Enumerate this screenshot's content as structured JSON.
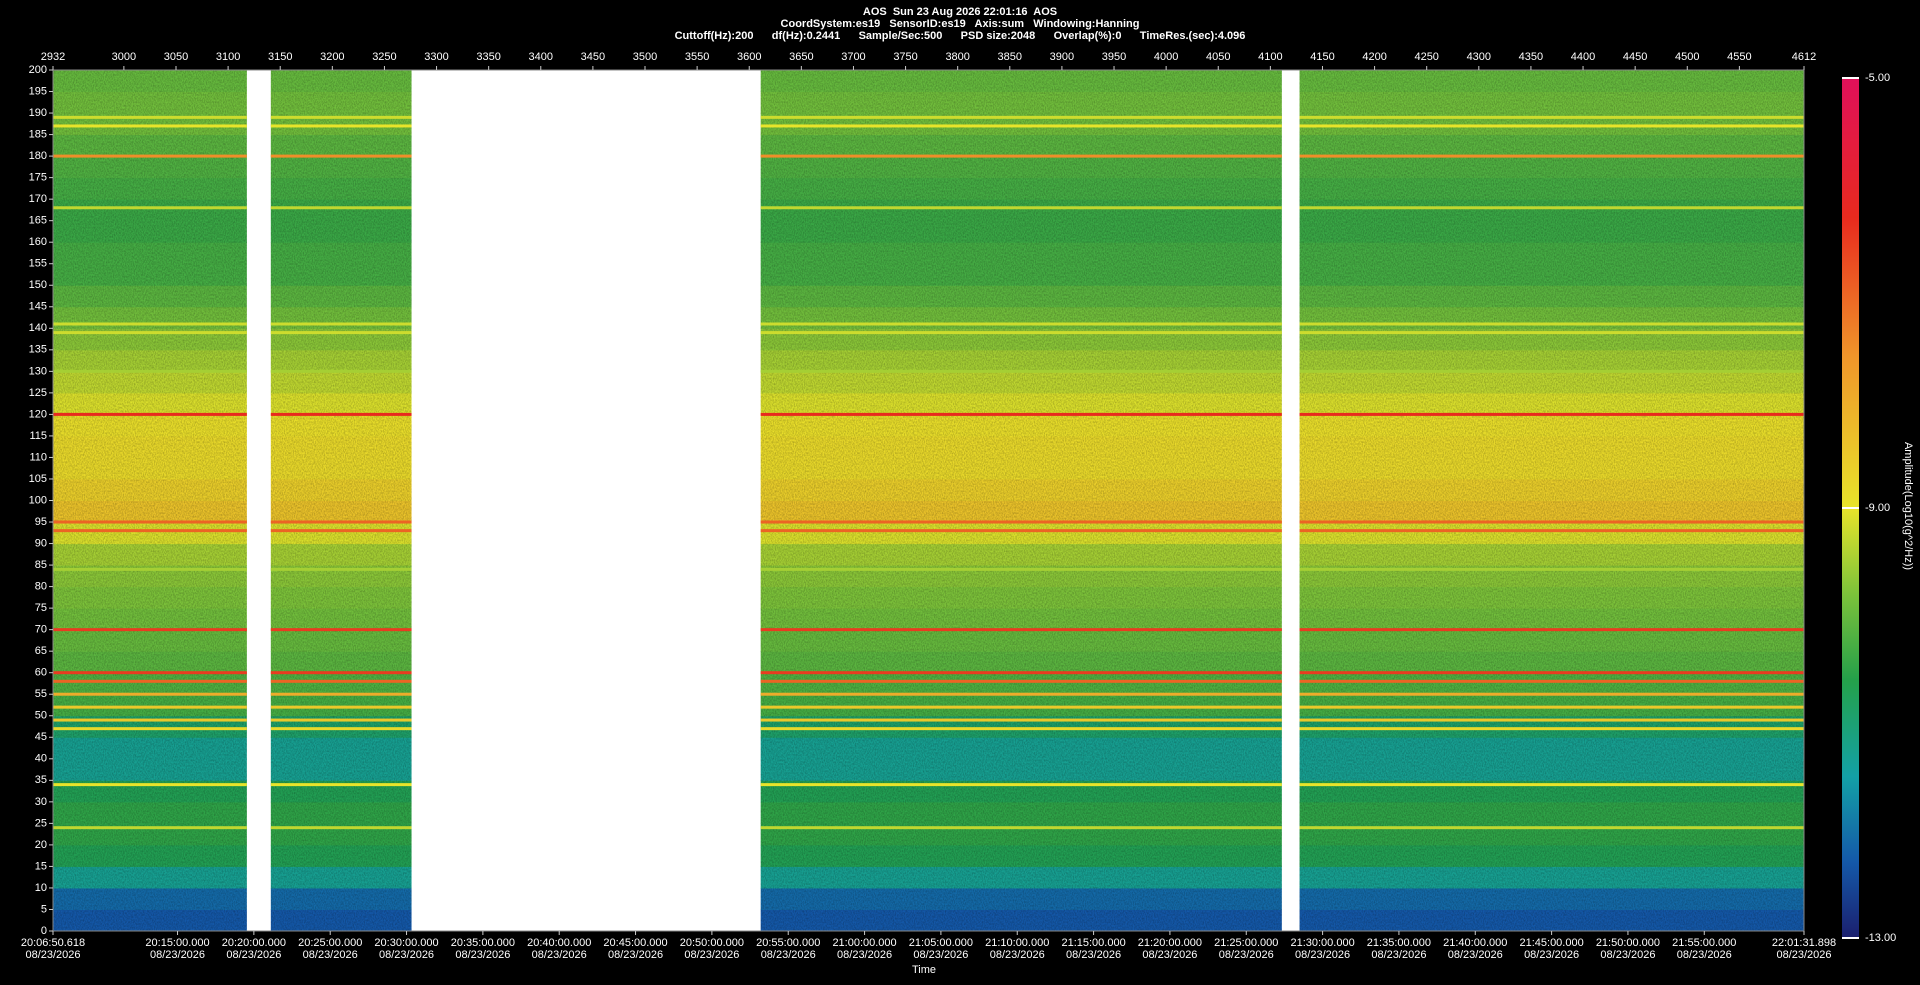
{
  "chart_data": {
    "type": "spectrogram",
    "title": "AOS  Sun 23 Aug 2026 22:01:16  AOS",
    "subtitle": "CoordSystem:es19   SensorID:es19   Axis:sum   Windowing:Hanning",
    "parameters": "Cuttoff(Hz):200      df(Hz):0.2441      Sample/Sec:500      PSD size:2048      Overlap(%):0      TimeRes.(sec):4.096",
    "x_label": "Time",
    "colorbar_label": "Amplitude(Log10(g^2/Hz))",
    "xlim": [
      "20:06:50.618",
      "22:01:31.898"
    ],
    "xticks": [
      {
        "time": "20:06:50.618",
        "date": "08/23/2026"
      },
      {
        "time": "20:15:00.000",
        "date": "08/23/2026"
      },
      {
        "time": "20:20:00.000",
        "date": "08/23/2026"
      },
      {
        "time": "20:25:00.000",
        "date": "08/23/2026"
      },
      {
        "time": "20:30:00.000",
        "date": "08/23/2026"
      },
      {
        "time": "20:35:00.000",
        "date": "08/23/2026"
      },
      {
        "time": "20:40:00.000",
        "date": "08/23/2026"
      },
      {
        "time": "20:45:00.000",
        "date": "08/23/2026"
      },
      {
        "time": "20:50:00.000",
        "date": "08/23/2026"
      },
      {
        "time": "20:55:00.000",
        "date": "08/23/2026"
      },
      {
        "time": "21:00:00.000",
        "date": "08/23/2026"
      },
      {
        "time": "21:05:00.000",
        "date": "08/23/2026"
      },
      {
        "time": "21:10:00.000",
        "date": "08/23/2026"
      },
      {
        "time": "21:15:00.000",
        "date": "08/23/2026"
      },
      {
        "time": "21:20:00.000",
        "date": "08/23/2026"
      },
      {
        "time": "21:25:00.000",
        "date": "08/23/2026"
      },
      {
        "time": "21:30:00.000",
        "date": "08/23/2026"
      },
      {
        "time": "21:35:00.000",
        "date": "08/23/2026"
      },
      {
        "time": "21:40:00.000",
        "date": "08/23/2026"
      },
      {
        "time": "21:45:00.000",
        "date": "08/23/2026"
      },
      {
        "time": "21:50:00.000",
        "date": "08/23/2026"
      },
      {
        "time": "21:55:00.000",
        "date": "08/23/2026"
      },
      {
        "time": "22:01:31.898",
        "date": "08/23/2026"
      }
    ],
    "x2lim": [
      2932,
      4612
    ],
    "x2ticks": [
      2932,
      3000,
      3050,
      3100,
      3150,
      3200,
      3250,
      3300,
      3350,
      3400,
      3450,
      3500,
      3550,
      3600,
      3650,
      3700,
      3750,
      3800,
      3850,
      3900,
      3950,
      4000,
      4050,
      4100,
      4150,
      4200,
      4250,
      4300,
      4350,
      4400,
      4450,
      4500,
      4550,
      4612
    ],
    "ylim": [
      0,
      200
    ],
    "yticks": [
      0,
      5,
      10,
      15,
      20,
      25,
      30,
      35,
      40,
      45,
      50,
      55,
      60,
      65,
      70,
      75,
      80,
      85,
      90,
      95,
      100,
      105,
      110,
      115,
      120,
      125,
      130,
      135,
      140,
      145,
      150,
      155,
      160,
      165,
      170,
      175,
      180,
      185,
      190,
      195,
      200
    ],
    "clim": [
      -13,
      -5
    ],
    "cticks": [
      {
        "value": -5,
        "label": "-5.00"
      },
      {
        "value": -9,
        "label": "-9.00"
      },
      {
        "value": -13,
        "label": "-13.00"
      }
    ],
    "colormap": [
      {
        "value": -13,
        "color": "#1b1f6e"
      },
      {
        "value": -12.3,
        "color": "#1458a8"
      },
      {
        "value": -11.5,
        "color": "#13a0a6"
      },
      {
        "value": -10.6,
        "color": "#24a04a"
      },
      {
        "value": -9.8,
        "color": "#7cc23a"
      },
      {
        "value": -9,
        "color": "#e8e42a"
      },
      {
        "value": -7.6,
        "color": "#f0962a"
      },
      {
        "value": -6.3,
        "color": "#e82a1e"
      },
      {
        "value": -5,
        "color": "#e0105a"
      }
    ],
    "segments": [
      [
        2932,
        3118
      ],
      [
        3141,
        3276
      ],
      [
        3611,
        4111
      ],
      [
        4128,
        4612
      ]
    ],
    "background": {
      "freq": [
        0,
        5,
        10,
        15,
        20,
        25,
        30,
        35,
        40,
        45,
        50,
        55,
        60,
        65,
        70,
        75,
        80,
        85,
        90,
        95,
        100,
        105,
        110,
        115,
        120,
        125,
        130,
        135,
        140,
        145,
        150,
        155,
        160,
        165,
        170,
        175,
        180,
        185,
        190,
        195
      ],
      "amplitude": [
        -12.3,
        -12.1,
        -11.3,
        -10.7,
        -10.5,
        -10.5,
        -10.7,
        -11.3,
        -11.3,
        -10.9,
        -10.3,
        -10.2,
        -10.1,
        -10,
        -9.9,
        -9.8,
        -9.7,
        -9.5,
        -9.1,
        -8.4,
        -8.6,
        -8.8,
        -8.8,
        -8.9,
        -9.1,
        -9.3,
        -9.5,
        -9.7,
        -9.9,
        -10.1,
        -10.3,
        -10.3,
        -10.4,
        -10.4,
        -10.3,
        -10.2,
        -10.1,
        -9.9,
        -9.9,
        -10
      ]
    },
    "tones": {
      "freq": [
        180,
        120,
        95,
        93,
        70,
        60,
        58,
        55,
        52,
        49,
        47,
        34,
        141,
        139,
        189,
        187,
        168,
        130,
        84,
        24
      ],
      "amplitude": [
        -7.5,
        -6.3,
        -7,
        -7,
        -6.5,
        -6.5,
        -7,
        -8,
        -8.5,
        -8.5,
        -8.8,
        -9,
        -9.2,
        -9.2,
        -9.2,
        -9,
        -9.3,
        -9.5,
        -9.5,
        -9.3
      ]
    }
  }
}
